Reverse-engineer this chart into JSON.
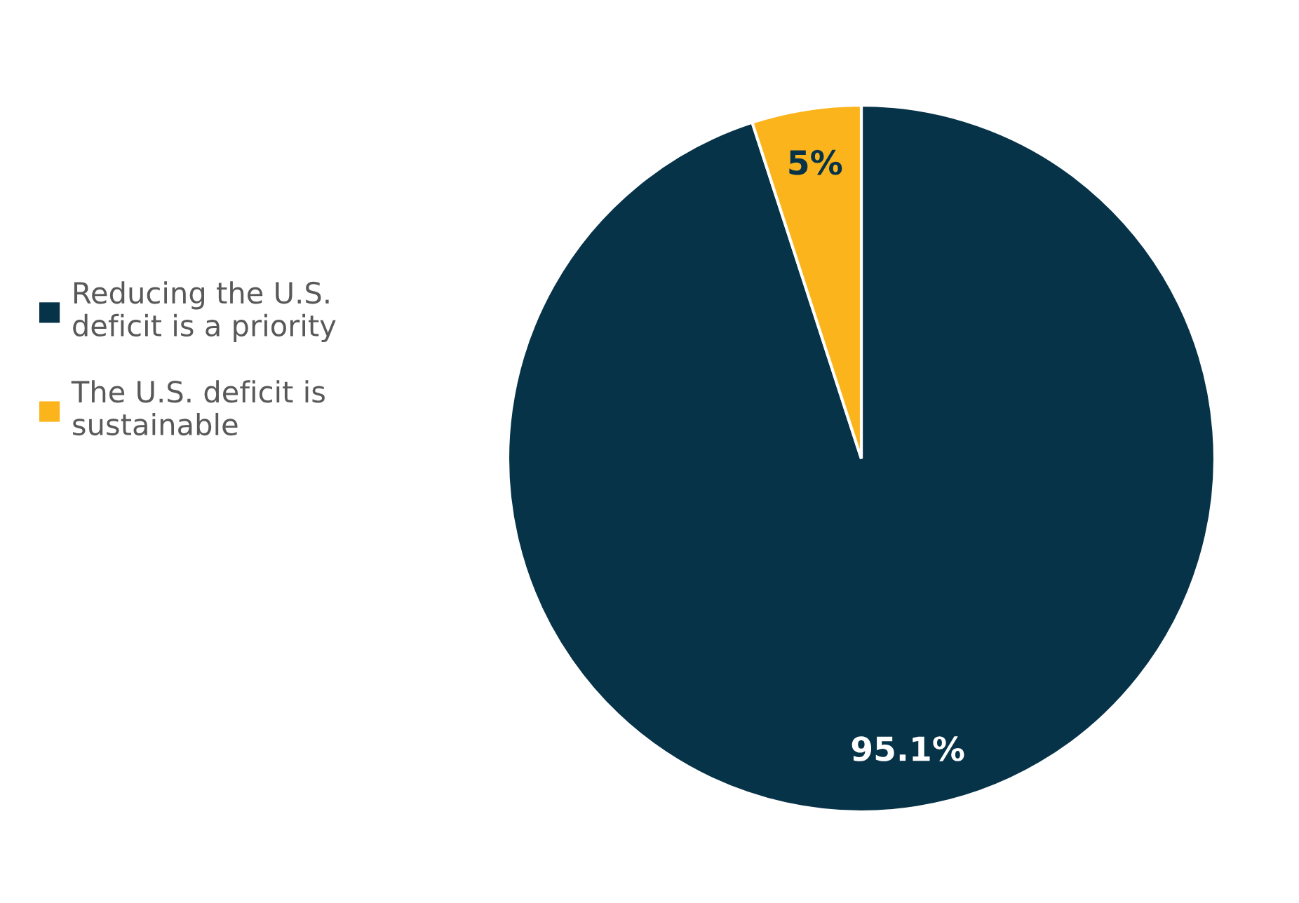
{
  "chart_data": {
    "type": "pie",
    "categories": [
      "Reducing the U.S. deficit is a priority",
      "The U.S. deficit is sustainable"
    ],
    "values": [
      95.1,
      5
    ],
    "colors": [
      "#073349",
      "#fbb41c"
    ],
    "value_labels": [
      "95.1%",
      "5%"
    ],
    "legend": "left"
  }
}
